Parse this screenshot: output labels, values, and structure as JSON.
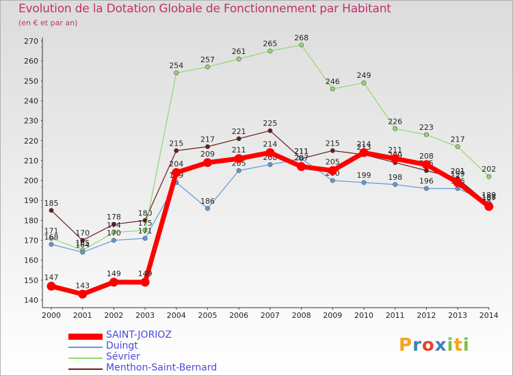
{
  "chart_data": {
    "type": "line",
    "title": "Evolution de la Dotation Globale de Fonctionnement par Habitant",
    "subtitle": "(en € et par an)",
    "xlabel": "",
    "ylabel": "",
    "ylim": [
      140,
      270
    ],
    "y_ticks": [
      "140",
      "150",
      "160",
      "170",
      "180",
      "190",
      "200",
      "210",
      "220",
      "230",
      "240",
      "250",
      "260",
      "270"
    ],
    "categories": [
      "2000",
      "2001",
      "2002",
      "2003",
      "2004",
      "2005",
      "2006",
      "2007",
      "2008",
      "2009",
      "2010",
      "2011",
      "2012",
      "2013",
      "2014"
    ],
    "series": [
      {
        "name": "SAINT-JORIOZ",
        "color": "#ff0000",
        "values": [
          147,
          143,
          149,
          149,
          204,
          209,
          211,
          214,
          207,
          205,
          214,
          211,
          208,
          199,
          187
        ]
      },
      {
        "name": "Duingt",
        "color": "#5b9bd5",
        "values": [
          168,
          164,
          170,
          171,
          199,
          186,
          205,
          208,
          211,
          200,
          199,
          198,
          196,
          196,
          189
        ]
      },
      {
        "name": "Sévrier",
        "color": "#8fd86f",
        "values": [
          171,
          165,
          174,
          175,
          254,
          257,
          261,
          265,
          268,
          246,
          249,
          226,
          223,
          217,
          202
        ]
      },
      {
        "name": "Menthon-Saint-Bernard",
        "color": "#6b1a1a",
        "values": [
          185,
          170,
          178,
          180,
          215,
          217,
          221,
          225,
          211,
          215,
          213,
          209,
          205,
          201,
          188
        ]
      }
    ],
    "legend_position": "bottom-left",
    "grid": false
  },
  "logo": {
    "letters": [
      "P",
      "r",
      "o",
      "x",
      "i",
      "t",
      "i"
    ],
    "colors": [
      "#f7a21b",
      "#3d7fc1",
      "#e8412e",
      "#3d7fc1",
      "#7fbf3f",
      "#f7a21b",
      "#7fbf3f"
    ]
  }
}
